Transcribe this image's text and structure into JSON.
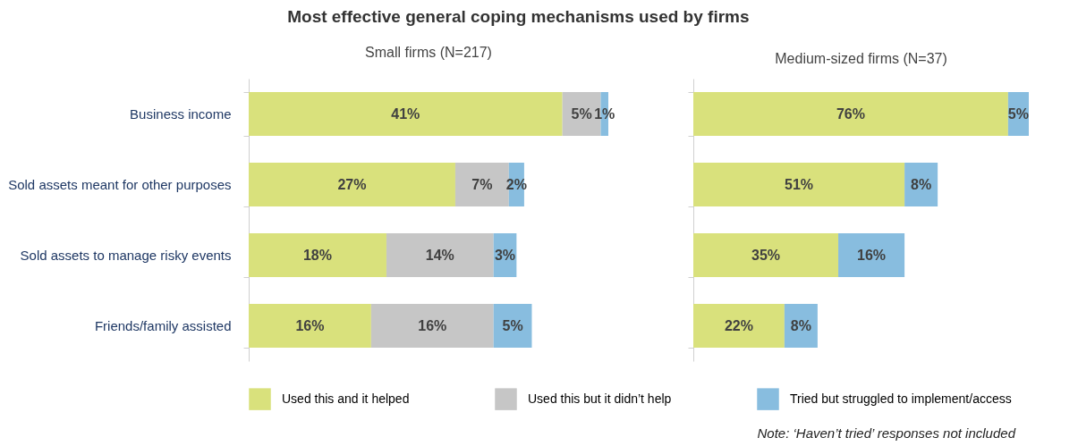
{
  "chart_data": [
    {
      "type": "bar",
      "orientation": "horizontal",
      "stacked": true,
      "title": "Most effective general coping mechanisms used by firms",
      "subtitle": "Small firms (N=217)",
      "categories": [
        "Business income",
        "Sold assets meant for other purposes",
        "Sold assets to manage risky events",
        "Friends/family assisted"
      ],
      "tick_labels": "y",
      "legend": "bottom",
      "series": [
        {
          "name": "Used this and it helped",
          "color": "#d9e17c",
          "values": [
            41,
            27,
            18,
            16
          ],
          "value_labels": [
            "41%",
            "27%",
            "18%",
            "16%"
          ]
        },
        {
          "name": "Used this but it didn’t help",
          "color": "#c6c6c6",
          "values": [
            5,
            7,
            14,
            16
          ],
          "value_labels": [
            "5%",
            "7%",
            "14%",
            "16%"
          ]
        },
        {
          "name": "Tried but struggled to implement/access",
          "color": "#88bddf",
          "values": [
            1,
            2,
            3,
            5
          ],
          "value_labels": [
            "1%",
            "2%",
            "3%",
            "5%"
          ]
        }
      ]
    },
    {
      "type": "bar",
      "orientation": "horizontal",
      "stacked": true,
      "title": "Medium-sized firms (N=37)",
      "categories": [
        null,
        null,
        null,
        null
      ],
      "tick_labels": false,
      "annotations": [
        "Note: ‘Haven’t tried’ responses not included"
      ],
      "series": [
        {
          "name": "Used this and it helped",
          "color": "#d9e17c",
          "values": [
            76,
            51,
            35,
            22
          ],
          "value_labels": [
            "76%",
            "51%",
            "35%",
            "22%"
          ]
        },
        {
          "name": "Tried but struggled to implement/access",
          "color": "#88bddf",
          "values": [
            5,
            8,
            16,
            8
          ],
          "value_labels": [
            "5%",
            "8%",
            "16%",
            "8%"
          ]
        }
      ]
    }
  ]
}
